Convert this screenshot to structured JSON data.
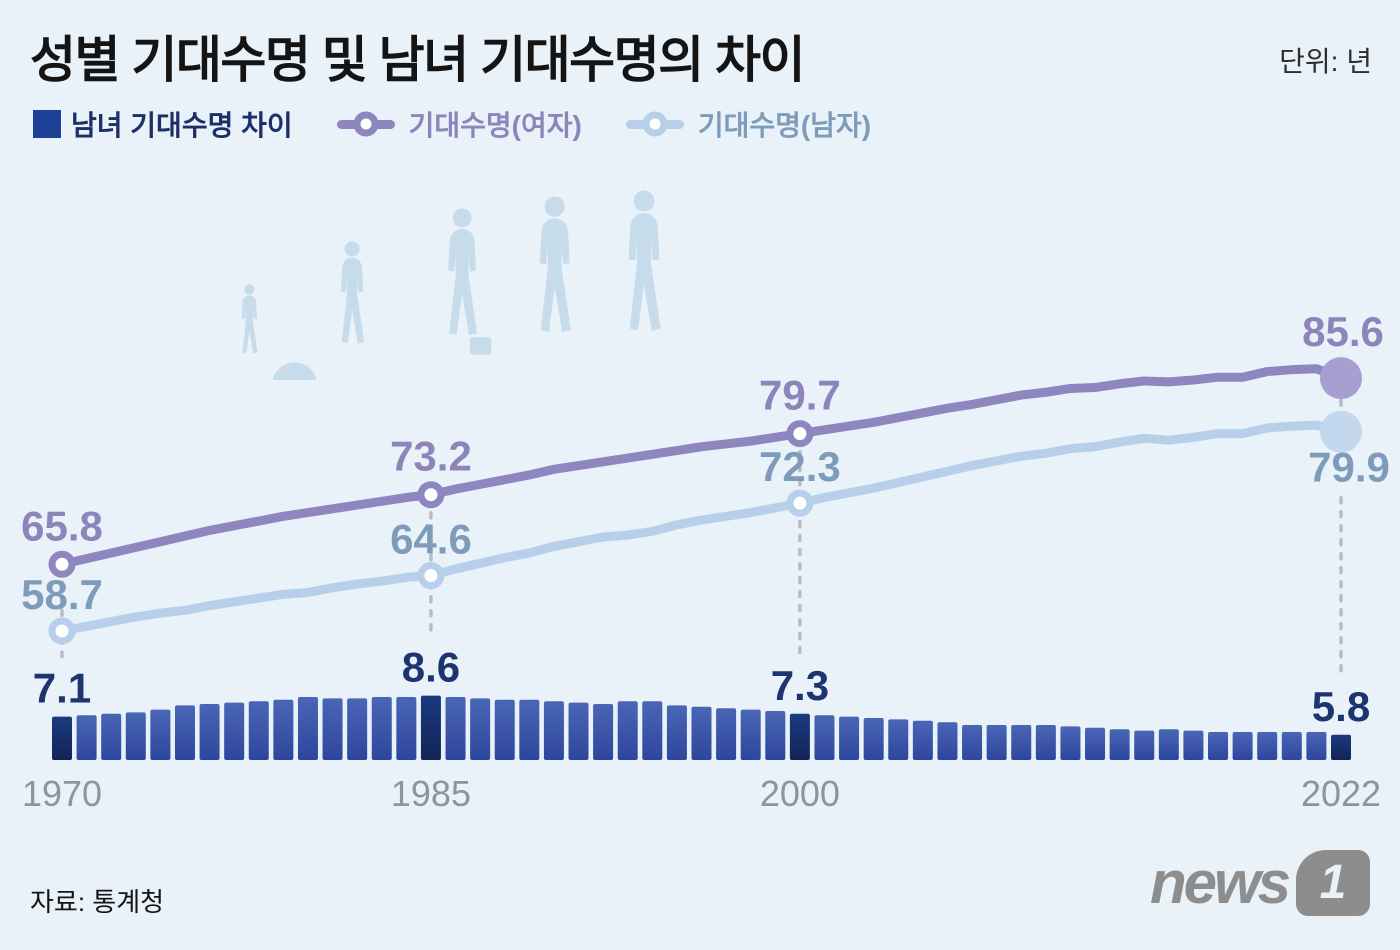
{
  "header": {
    "title": "성별 기대수명 및 남녀 기대수명의 차이",
    "unit": "단위: 년"
  },
  "legend": [
    {
      "label": "남녀 기대수명 차이",
      "marker": "square",
      "color": "#1e3f96",
      "text_color": "#1c2f66"
    },
    {
      "label": "기대수명(여자)",
      "marker": "line-dot",
      "color": "#8e86bf",
      "text_color": "#8d84ba"
    },
    {
      "label": "기대수명(남자)",
      "marker": "line-dot",
      "color": "#b7cfe9",
      "text_color": "#7e9cba"
    }
  ],
  "footer": {
    "source": "자료: 통계청",
    "logo_text": "news",
    "logo_number": "1"
  },
  "illustration": {
    "name": "life-stages-silhouettes",
    "color": "#c7dcea"
  },
  "chart_data": {
    "type": "bar+line",
    "title": "성별 기대수명 및 남녀 기대수명의 차이",
    "unit": "년",
    "grid": false,
    "legend_position": "top-left",
    "x_ticks": [
      "1970",
      "1985",
      "2000",
      "2022"
    ],
    "x": [
      1970,
      1971,
      1972,
      1973,
      1974,
      1975,
      1976,
      1977,
      1978,
      1979,
      1980,
      1981,
      1982,
      1983,
      1984,
      1985,
      1986,
      1987,
      1988,
      1989,
      1990,
      1991,
      1992,
      1993,
      1994,
      1995,
      1996,
      1997,
      1998,
      1999,
      2000,
      2001,
      2002,
      2003,
      2004,
      2005,
      2006,
      2007,
      2008,
      2009,
      2010,
      2011,
      2012,
      2013,
      2014,
      2015,
      2016,
      2017,
      2018,
      2019,
      2020,
      2021,
      2022
    ],
    "series": [
      {
        "name": "기대수명(여자)",
        "type": "line",
        "color": "#8e86bf",
        "end_dot_color": "#a89fd1",
        "values": [
          65.8,
          66.4,
          67.0,
          67.6,
          68.2,
          68.8,
          69.4,
          69.9,
          70.4,
          70.9,
          71.3,
          71.7,
          72.1,
          72.5,
          72.9,
          73.2,
          73.8,
          74.3,
          74.8,
          75.3,
          75.9,
          76.3,
          76.7,
          77.1,
          77.5,
          77.9,
          78.3,
          78.6,
          78.9,
          79.3,
          79.7,
          80.1,
          80.5,
          80.9,
          81.4,
          81.9,
          82.4,
          82.8,
          83.3,
          83.8,
          84.1,
          84.5,
          84.6,
          85.0,
          85.3,
          85.2,
          85.4,
          85.7,
          85.7,
          86.3,
          86.5,
          86.6,
          85.6
        ]
      },
      {
        "name": "기대수명(남자)",
        "type": "line",
        "color": "#b7cfe9",
        "end_dot_color": "#c3d8ee",
        "values": [
          58.7,
          59.2,
          59.7,
          60.2,
          60.6,
          60.9,
          61.4,
          61.8,
          62.2,
          62.6,
          62.8,
          63.3,
          63.7,
          64.0,
          64.4,
          64.6,
          65.3,
          65.9,
          66.5,
          67.0,
          67.7,
          68.2,
          68.7,
          68.9,
          69.3,
          70.0,
          70.5,
          70.9,
          71.3,
          71.8,
          72.3,
          72.9,
          73.4,
          73.9,
          74.5,
          75.1,
          75.7,
          76.3,
          76.8,
          77.3,
          77.6,
          78.1,
          78.3,
          78.8,
          79.2,
          79.0,
          79.3,
          79.7,
          79.7,
          80.3,
          80.5,
          80.6,
          79.9
        ]
      },
      {
        "name": "남녀 기대수명 차이",
        "type": "bar",
        "color": "#3d59a8",
        "highlight_color": "#17306b",
        "values": [
          7.1,
          7.2,
          7.3,
          7.4,
          7.6,
          7.9,
          8.0,
          8.1,
          8.2,
          8.3,
          8.5,
          8.4,
          8.4,
          8.5,
          8.5,
          8.6,
          8.5,
          8.4,
          8.3,
          8.3,
          8.2,
          8.1,
          8.0,
          8.2,
          8.2,
          7.9,
          7.8,
          7.7,
          7.6,
          7.5,
          7.3,
          7.2,
          7.1,
          7.0,
          6.9,
          6.8,
          6.7,
          6.5,
          6.5,
          6.5,
          6.5,
          6.4,
          6.3,
          6.2,
          6.1,
          6.2,
          6.1,
          6.0,
          6.0,
          6.0,
          6.0,
          6.0,
          5.8
        ]
      }
    ],
    "labeled_points": [
      {
        "year": 1970,
        "female": "65.8",
        "male": "58.7",
        "gap": "7.1"
      },
      {
        "year": 1985,
        "female": "73.2",
        "male": "64.6",
        "gap": "8.6"
      },
      {
        "year": 2000,
        "female": "79.7",
        "male": "72.3",
        "gap": "7.3"
      },
      {
        "year": 2022,
        "female": "85.6",
        "male": "79.9",
        "gap": "5.8"
      }
    ]
  }
}
